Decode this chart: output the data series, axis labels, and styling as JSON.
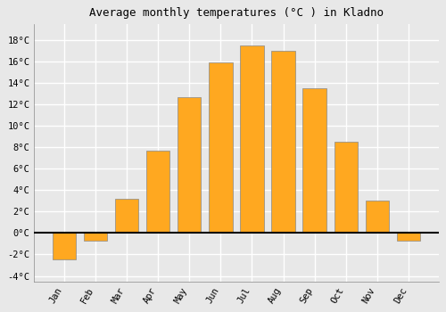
{
  "months": [
    "Jan",
    "Feb",
    "Mar",
    "Apr",
    "May",
    "Jun",
    "Jul",
    "Aug",
    "Sep",
    "Oct",
    "Nov",
    "Dec"
  ],
  "values": [
    -2.5,
    -0.7,
    3.2,
    7.7,
    12.7,
    15.9,
    17.5,
    17.0,
    13.5,
    8.5,
    3.0,
    -0.7
  ],
  "bar_color": "#FFA820",
  "bar_edge_color": "#888888",
  "title": "Average monthly temperatures (°C ) in Kladno",
  "title_fontsize": 9,
  "ylim": [
    -4.5,
    19.5
  ],
  "yticks": [
    -4,
    -2,
    0,
    2,
    4,
    6,
    8,
    10,
    12,
    14,
    16,
    18
  ],
  "ytick_labels": [
    "-4°C",
    "-2°C",
    "0°C",
    "2°C",
    "4°C",
    "6°C",
    "8°C",
    "10°C",
    "12°C",
    "14°C",
    "16°C",
    "18°C"
  ],
  "background_color": "#e8e8e8",
  "plot_bg_color": "#e8e8e8",
  "grid_color": "#ffffff",
  "zero_line_color": "#000000",
  "tick_label_fontsize": 7.5,
  "font_family": "monospace",
  "bar_width": 0.75
}
